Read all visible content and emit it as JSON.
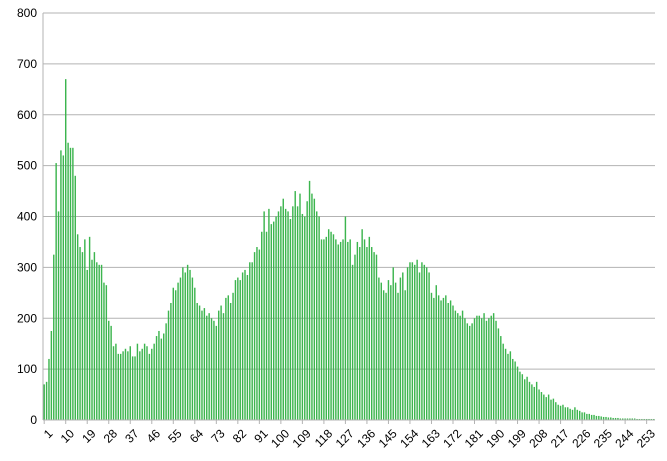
{
  "chart_data": {
    "type": "bar",
    "categories": [
      "1",
      null,
      null,
      null,
      null,
      null,
      null,
      null,
      null,
      "10",
      null,
      null,
      null,
      null,
      null,
      null,
      null,
      null,
      "19",
      null,
      null,
      null,
      null,
      null,
      null,
      null,
      null,
      "28",
      null,
      null,
      null,
      null,
      null,
      null,
      null,
      null,
      "37",
      null,
      null,
      null,
      null,
      null,
      null,
      null,
      null,
      "46",
      null,
      null,
      null,
      null,
      null,
      null,
      null,
      null,
      "55",
      null,
      null,
      null,
      null,
      null,
      null,
      null,
      null,
      "64",
      null,
      null,
      null,
      null,
      null,
      null,
      null,
      null,
      "73",
      null,
      null,
      null,
      null,
      null,
      null,
      null,
      null,
      "82",
      null,
      null,
      null,
      null,
      null,
      null,
      null,
      null,
      "91",
      null,
      null,
      null,
      null,
      null,
      null,
      null,
      null,
      "100",
      null,
      null,
      null,
      null,
      null,
      null,
      null,
      null,
      "109",
      null,
      null,
      null,
      null,
      null,
      null,
      null,
      null,
      "118",
      null,
      null,
      null,
      null,
      null,
      null,
      null,
      null,
      "127",
      null,
      null,
      null,
      null,
      null,
      null,
      null,
      null,
      "136",
      null,
      null,
      null,
      null,
      null,
      null,
      null,
      null,
      "145",
      null,
      null,
      null,
      null,
      null,
      null,
      null,
      null,
      "154",
      null,
      null,
      null,
      null,
      null,
      null,
      null,
      null,
      "163",
      null,
      null,
      null,
      null,
      null,
      null,
      null,
      null,
      "172",
      null,
      null,
      null,
      null,
      null,
      null,
      null,
      null,
      "181",
      null,
      null,
      null,
      null,
      null,
      null,
      null,
      null,
      "190",
      null,
      null,
      null,
      null,
      null,
      null,
      null,
      null,
      "199",
      null,
      null,
      null,
      null,
      null,
      null,
      null,
      null,
      "208",
      null,
      null,
      null,
      null,
      null,
      null,
      null,
      null,
      "217",
      null,
      null,
      null,
      null,
      null,
      null,
      null,
      null,
      "226",
      null,
      null,
      null,
      null,
      null,
      null,
      null,
      null,
      "235",
      null,
      null,
      null,
      null,
      null,
      null,
      null,
      null,
      "244",
      null,
      null,
      null,
      null,
      null,
      null,
      null,
      null,
      "253",
      null,
      null,
      null
    ],
    "values": [
      70,
      75,
      120,
      175,
      325,
      505,
      410,
      530,
      520,
      670,
      545,
      535,
      535,
      480,
      365,
      340,
      330,
      355,
      295,
      360,
      315,
      330,
      310,
      305,
      305,
      270,
      265,
      195,
      185,
      145,
      150,
      130,
      130,
      135,
      140,
      135,
      145,
      125,
      125,
      150,
      135,
      140,
      150,
      145,
      130,
      140,
      150,
      165,
      175,
      160,
      170,
      190,
      215,
      230,
      260,
      255,
      270,
      280,
      300,
      290,
      305,
      295,
      280,
      260,
      230,
      225,
      215,
      220,
      205,
      210,
      200,
      195,
      185,
      215,
      225,
      210,
      240,
      245,
      230,
      250,
      275,
      280,
      275,
      290,
      295,
      285,
      310,
      310,
      330,
      340,
      335,
      370,
      410,
      370,
      415,
      385,
      390,
      400,
      410,
      420,
      435,
      415,
      410,
      395,
      420,
      450,
      420,
      445,
      405,
      400,
      430,
      470,
      445,
      435,
      410,
      400,
      355,
      355,
      360,
      375,
      370,
      365,
      355,
      345,
      350,
      355,
      400,
      350,
      355,
      305,
      325,
      350,
      340,
      375,
      355,
      340,
      360,
      340,
      330,
      325,
      280,
      270,
      255,
      250,
      275,
      265,
      300,
      270,
      250,
      280,
      290,
      255,
      300,
      310,
      310,
      305,
      315,
      290,
      310,
      305,
      300,
      290,
      250,
      240,
      265,
      245,
      235,
      240,
      245,
      230,
      235,
      225,
      215,
      210,
      205,
      215,
      200,
      190,
      185,
      190,
      200,
      205,
      205,
      200,
      210,
      195,
      200,
      205,
      210,
      195,
      180,
      165,
      150,
      140,
      130,
      135,
      120,
      115,
      105,
      95,
      90,
      80,
      85,
      75,
      70,
      65,
      75,
      60,
      55,
      50,
      45,
      50,
      40,
      42,
      35,
      30,
      28,
      30,
      25,
      25,
      22,
      20,
      25,
      20,
      18,
      15,
      15,
      12,
      12,
      10,
      10,
      8,
      8,
      7,
      6,
      6,
      5,
      5,
      4,
      4,
      4,
      3,
      3,
      3,
      3,
      3,
      3,
      3,
      2,
      2,
      2,
      2,
      2,
      2,
      2,
      2
    ],
    "color": "#3cb54e",
    "ylim": [
      0,
      800
    ],
    "yticks": [
      0,
      100,
      200,
      300,
      400,
      500,
      600,
      700,
      800
    ],
    "grid": true
  }
}
